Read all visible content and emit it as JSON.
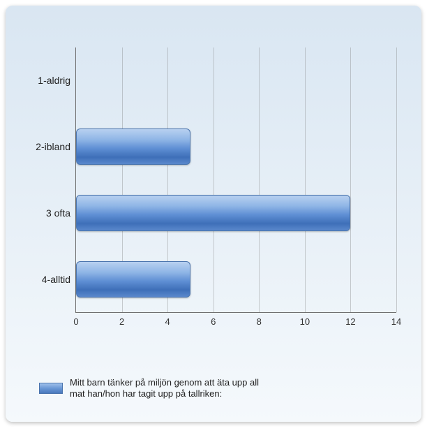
{
  "chart": {
    "type": "bar-horizontal",
    "background_gradient_top": "#d9e6f2",
    "background_gradient_bottom": "#f5f9fc",
    "axis_color": "#6f6f6f",
    "grid_color": "rgba(120,120,120,0.35)",
    "bar_gradient": [
      "#b8d1f0",
      "#8fb5e6",
      "#5f8fd4",
      "#3e6fb8",
      "#5a88cc"
    ],
    "bar_border": "#4a74ad",
    "label_fontsize": 14,
    "tick_fontsize": 13,
    "x": {
      "min": 0,
      "max": 14,
      "step": 2,
      "ticks": [
        "0",
        "2",
        "4",
        "6",
        "8",
        "10",
        "12",
        "14"
      ]
    },
    "categories": [
      {
        "label": "1-aldrig",
        "value": 0
      },
      {
        "label": "2-ibland",
        "value": 5
      },
      {
        "label": "3 ofta",
        "value": 12
      },
      {
        "label": "4-alltid",
        "value": 5
      }
    ],
    "legend": {
      "label": "Mitt barn tänker på miljön genom att äta upp all mat han/hon har tagit upp på tallriken:"
    }
  }
}
